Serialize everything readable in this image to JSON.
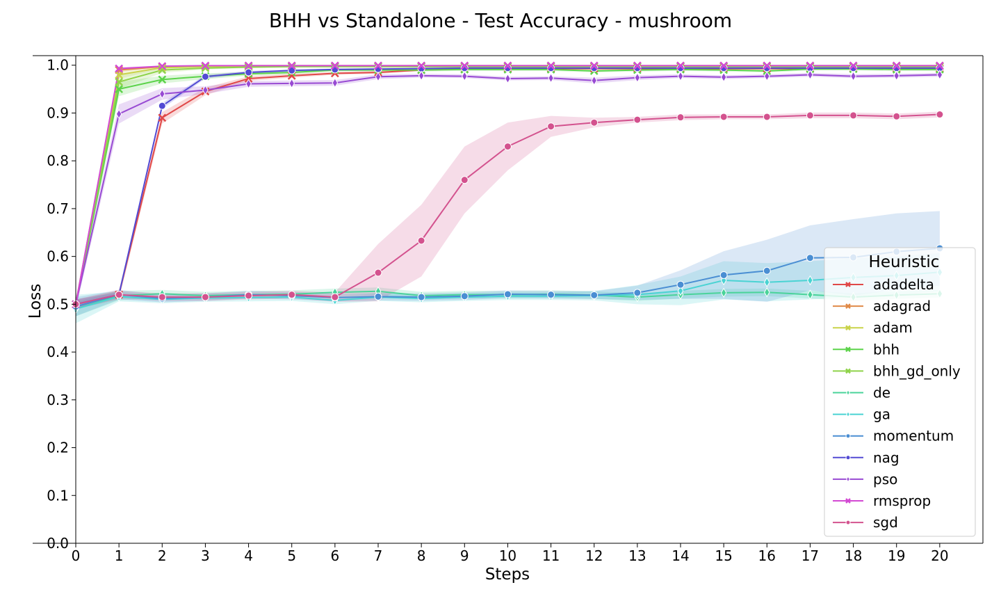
{
  "chart_data": {
    "type": "line",
    "title": "BHH vs Standalone - Test Accuracy - mushroom",
    "xlabel": "Steps",
    "ylabel": "Loss",
    "xlim": [
      0,
      21
    ],
    "ylim": [
      0,
      1.02
    ],
    "x_ticks": [
      "0",
      "1",
      "2",
      "3",
      "4",
      "5",
      "6",
      "7",
      "8",
      "9",
      "10",
      "11",
      "12",
      "13",
      "14",
      "15",
      "16",
      "17",
      "18",
      "19",
      "20"
    ],
    "y_ticks": [
      "0.0",
      "0.1",
      "0.2",
      "0.3",
      "0.4",
      "0.5",
      "0.6",
      "0.7",
      "0.8",
      "0.9",
      "1.0"
    ],
    "x": [
      0,
      1,
      2,
      3,
      4,
      5,
      6,
      7,
      8,
      9,
      10,
      11,
      12,
      13,
      14,
      15,
      16,
      17,
      18,
      19,
      20
    ],
    "grid": false,
    "legend": {
      "title": "Heuristic",
      "placement": "right"
    },
    "series": [
      {
        "name": "adadelta",
        "color": "#e04848",
        "marker": "x",
        "values": [
          0.5,
          0.52,
          0.89,
          0.945,
          0.972,
          0.978,
          0.983,
          0.985,
          0.99,
          0.992,
          0.993,
          0.993,
          0.993,
          0.993,
          0.993,
          0.993,
          0.993,
          0.993,
          0.993,
          0.993,
          0.993
        ],
        "band": [
          0.01,
          0.01,
          0.012,
          0.008,
          0.005,
          0.004,
          0.003,
          0.003,
          0.002,
          0.002,
          0.002,
          0.002,
          0.002,
          0.002,
          0.002,
          0.002,
          0.002,
          0.002,
          0.002,
          0.002,
          0.002
        ]
      },
      {
        "name": "adagrad",
        "color": "#e08a48",
        "marker": "x",
        "values": [
          0.5,
          0.99,
          0.997,
          0.998,
          0.999,
          0.999,
          0.999,
          0.999,
          0.999,
          0.999,
          0.999,
          0.999,
          0.999,
          0.999,
          0.999,
          0.999,
          0.999,
          0.999,
          0.999,
          0.999,
          0.999
        ],
        "band": [
          0.01,
          0.004,
          0.002,
          0.001,
          0.001,
          0.001,
          0.001,
          0.001,
          0.001,
          0.001,
          0.001,
          0.001,
          0.001,
          0.001,
          0.001,
          0.001,
          0.001,
          0.001,
          0.001,
          0.001,
          0.001
        ]
      },
      {
        "name": "adam",
        "color": "#c9d34a",
        "marker": "x",
        "values": [
          0.5,
          0.98,
          0.995,
          0.997,
          0.998,
          0.998,
          0.998,
          0.998,
          0.998,
          0.998,
          0.998,
          0.998,
          0.998,
          0.998,
          0.998,
          0.998,
          0.998,
          0.998,
          0.998,
          0.998,
          0.998
        ],
        "band": [
          0.01,
          0.008,
          0.003,
          0.002,
          0.001,
          0.001,
          0.001,
          0.001,
          0.001,
          0.001,
          0.001,
          0.001,
          0.001,
          0.001,
          0.001,
          0.001,
          0.001,
          0.001,
          0.001,
          0.001,
          0.001
        ]
      },
      {
        "name": "bhh",
        "color": "#5cd34a",
        "marker": "x",
        "values": [
          0.5,
          0.95,
          0.97,
          0.977,
          0.982,
          0.985,
          0.99,
          0.99,
          0.99,
          0.991,
          0.991,
          0.991,
          0.988,
          0.99,
          0.991,
          0.99,
          0.988,
          0.992,
          0.992,
          0.991,
          0.991
        ],
        "band": [
          0.01,
          0.015,
          0.008,
          0.006,
          0.004,
          0.004,
          0.003,
          0.003,
          0.003,
          0.003,
          0.003,
          0.003,
          0.003,
          0.003,
          0.003,
          0.003,
          0.003,
          0.003,
          0.003,
          0.003,
          0.003
        ]
      },
      {
        "name": "bhh_gd_only",
        "color": "#8fd34a",
        "marker": "x",
        "values": [
          0.5,
          0.965,
          0.99,
          0.994,
          0.996,
          0.997,
          0.997,
          0.997,
          0.997,
          0.997,
          0.997,
          0.997,
          0.997,
          0.997,
          0.997,
          0.997,
          0.997,
          0.997,
          0.997,
          0.997,
          0.997
        ],
        "band": [
          0.01,
          0.015,
          0.006,
          0.003,
          0.002,
          0.002,
          0.002,
          0.002,
          0.002,
          0.002,
          0.002,
          0.002,
          0.002,
          0.002,
          0.002,
          0.002,
          0.002,
          0.002,
          0.002,
          0.002,
          0.002
        ]
      },
      {
        "name": "de",
        "color": "#4ad39a",
        "marker": "diamond",
        "values": [
          0.49,
          0.518,
          0.522,
          0.518,
          0.52,
          0.521,
          0.525,
          0.527,
          0.518,
          0.52,
          0.52,
          0.521,
          0.519,
          0.515,
          0.52,
          0.524,
          0.525,
          0.52,
          0.515,
          0.519,
          0.522
        ],
        "band": [
          0.015,
          0.01,
          0.008,
          0.008,
          0.008,
          0.008,
          0.008,
          0.008,
          0.008,
          0.008,
          0.008,
          0.008,
          0.008,
          0.008,
          0.008,
          0.008,
          0.008,
          0.008,
          0.008,
          0.008,
          0.008
        ]
      },
      {
        "name": "ga",
        "color": "#4ad3d3",
        "marker": "diamond",
        "values": [
          0.49,
          0.516,
          0.51,
          0.513,
          0.514,
          0.515,
          0.508,
          0.515,
          0.512,
          0.515,
          0.517,
          0.517,
          0.518,
          0.52,
          0.528,
          0.55,
          0.546,
          0.55,
          0.556,
          0.56,
          0.567
        ],
        "band": [
          0.03,
          0.01,
          0.008,
          0.008,
          0.008,
          0.008,
          0.008,
          0.008,
          0.008,
          0.008,
          0.008,
          0.008,
          0.01,
          0.02,
          0.03,
          0.04,
          0.04,
          0.04,
          0.04,
          0.04,
          0.04
        ]
      },
      {
        "name": "momentum",
        "color": "#4a8ed3",
        "marker": "circle",
        "values": [
          0.495,
          0.52,
          0.512,
          0.515,
          0.52,
          0.518,
          0.514,
          0.516,
          0.515,
          0.517,
          0.521,
          0.52,
          0.519,
          0.524,
          0.541,
          0.561,
          0.57,
          0.597,
          0.598,
          0.61,
          0.617
        ],
        "band": [
          0.02,
          0.01,
          0.008,
          0.008,
          0.008,
          0.008,
          0.008,
          0.008,
          0.008,
          0.008,
          0.008,
          0.008,
          0.008,
          0.015,
          0.03,
          0.05,
          0.065,
          0.068,
          0.08,
          0.08,
          0.078
        ]
      },
      {
        "name": "nag",
        "color": "#524ad3",
        "marker": "circle",
        "values": [
          0.5,
          0.52,
          0.915,
          0.976,
          0.985,
          0.989,
          0.991,
          0.992,
          0.993,
          0.994,
          0.994,
          0.994,
          0.994,
          0.994,
          0.994,
          0.994,
          0.994,
          0.994,
          0.994,
          0.994,
          0.994
        ],
        "band": [
          0.01,
          0.005,
          0.006,
          0.004,
          0.003,
          0.002,
          0.002,
          0.002,
          0.002,
          0.002,
          0.002,
          0.002,
          0.002,
          0.002,
          0.002,
          0.002,
          0.002,
          0.002,
          0.002,
          0.002,
          0.002
        ]
      },
      {
        "name": "pso",
        "color": "#984ad3",
        "marker": "diamond",
        "values": [
          0.5,
          0.898,
          0.94,
          0.948,
          0.961,
          0.962,
          0.963,
          0.976,
          0.978,
          0.977,
          0.972,
          0.973,
          0.968,
          0.974,
          0.977,
          0.975,
          0.977,
          0.98,
          0.977,
          0.978,
          0.98
        ],
        "band": [
          0.01,
          0.02,
          0.012,
          0.008,
          0.006,
          0.006,
          0.006,
          0.005,
          0.004,
          0.004,
          0.004,
          0.004,
          0.006,
          0.005,
          0.004,
          0.004,
          0.004,
          0.004,
          0.004,
          0.004,
          0.004
        ]
      },
      {
        "name": "rmsprop",
        "color": "#d34ad3",
        "marker": "x",
        "values": [
          0.5,
          0.993,
          0.998,
          0.999,
          0.999,
          0.999,
          0.999,
          0.999,
          0.999,
          0.999,
          0.999,
          0.999,
          0.999,
          0.999,
          0.999,
          0.999,
          0.999,
          0.999,
          0.999,
          0.999,
          0.999
        ],
        "band": [
          0.01,
          0.003,
          0.001,
          0.001,
          0.001,
          0.001,
          0.001,
          0.001,
          0.001,
          0.001,
          0.001,
          0.001,
          0.001,
          0.001,
          0.001,
          0.001,
          0.001,
          0.001,
          0.001,
          0.001,
          0.001
        ]
      },
      {
        "name": "sgd",
        "color": "#d3528e",
        "marker": "circle",
        "values": [
          0.5,
          0.52,
          0.515,
          0.515,
          0.518,
          0.52,
          0.515,
          0.566,
          0.633,
          0.76,
          0.83,
          0.872,
          0.88,
          0.886,
          0.891,
          0.892,
          0.892,
          0.895,
          0.895,
          0.893,
          0.897
        ],
        "band": [
          0.01,
          0.008,
          0.008,
          0.008,
          0.008,
          0.008,
          0.01,
          0.06,
          0.075,
          0.07,
          0.05,
          0.022,
          0.01,
          0.006,
          0.006,
          0.005,
          0.005,
          0.006,
          0.006,
          0.006,
          0.006
        ]
      }
    ]
  }
}
